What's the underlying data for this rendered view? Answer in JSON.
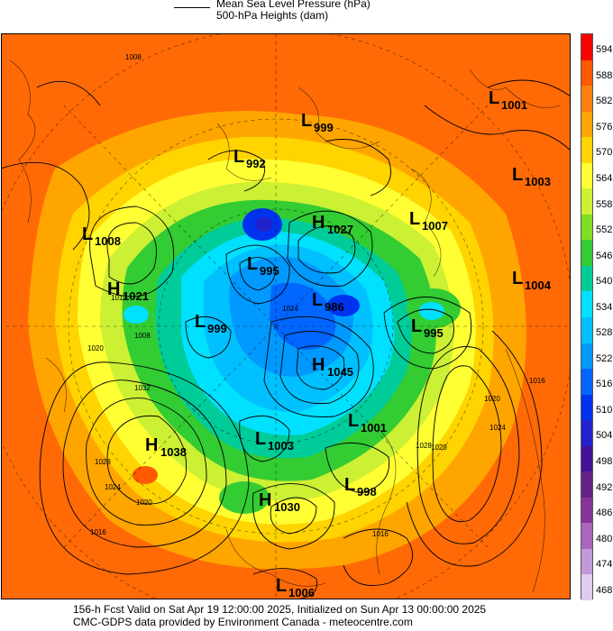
{
  "legend": {
    "mslp_label": "Mean Sea Level Pressure (hPa)",
    "heights_label": "500-hPa Heights (dam)"
  },
  "colorbar": {
    "levels": [
      "594",
      "588",
      "582",
      "576",
      "570",
      "564",
      "558",
      "552",
      "546",
      "540",
      "534",
      "528",
      "522",
      "516",
      "510",
      "504",
      "498",
      "492",
      "486",
      "480",
      "474",
      "468"
    ],
    "colors": [
      "#ff0000",
      "#ff5a00",
      "#ff7f0e",
      "#ffa500",
      "#ffd400",
      "#ffff33",
      "#ccf033",
      "#7fdd22",
      "#33cc33",
      "#00cc99",
      "#00e0ff",
      "#00c0ff",
      "#0099ff",
      "#0066ff",
      "#0033ee",
      "#2222cc",
      "#441199",
      "#662288",
      "#883399",
      "#aa66bb",
      "#c299d9",
      "#e0ccee"
    ]
  },
  "pressure_systems": [
    {
      "type": "L",
      "value": "1001"
    },
    {
      "type": "L",
      "value": "999"
    },
    {
      "type": "L",
      "value": "992"
    },
    {
      "type": "L",
      "value": "1003"
    },
    {
      "type": "L",
      "value": "1008"
    },
    {
      "type": "H",
      "value": "1027"
    },
    {
      "type": "L",
      "value": "1007"
    },
    {
      "type": "L",
      "value": "995"
    },
    {
      "type": "H",
      "value": "1021"
    },
    {
      "type": "L",
      "value": "1004"
    },
    {
      "type": "L",
      "value": "986"
    },
    {
      "type": "L",
      "value": "999"
    },
    {
      "type": "L",
      "value": "995"
    },
    {
      "type": "H",
      "value": "1045"
    },
    {
      "type": "L",
      "value": "1001"
    },
    {
      "type": "H",
      "value": "1038"
    },
    {
      "type": "L",
      "value": "1003"
    },
    {
      "type": "L",
      "value": "998"
    },
    {
      "type": "H",
      "value": "1030"
    },
    {
      "type": "L",
      "value": "1006"
    }
  ],
  "isobar_labels": [
    "1008",
    "1012",
    "1008",
    "1024",
    "1020",
    "1032",
    "1028",
    "1024",
    "1020",
    "1016",
    "1020",
    "1016",
    "1028",
    "1016",
    "1024",
    "1028"
  ],
  "footer": {
    "line1": "156-h Fcst Valid on Sat Apr 19 12:00:00 2025, Initialized on Sun Apr 13 00:00:00 2025",
    "line2": "CMC-GDPS data provided by Environment Canada - meteocentre.com"
  }
}
